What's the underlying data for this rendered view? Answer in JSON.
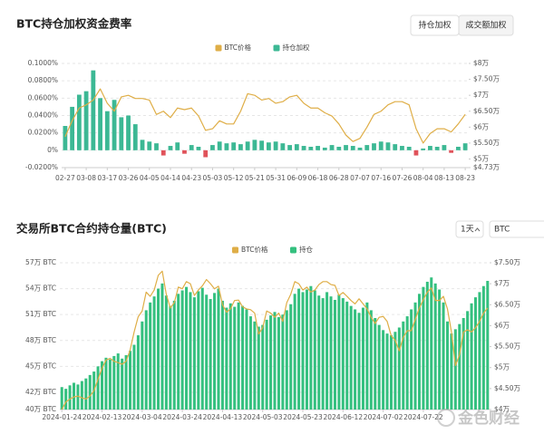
{
  "chart_data": [
    {
      "type": "combo",
      "title": "BTC持仓加权资金费率",
      "tabs": [
        "持仓加权",
        "成交额加权"
      ],
      "grid": true,
      "categories": [
        "02-27",
        null,
        null,
        "03-08",
        null,
        null,
        "03-17",
        null,
        null,
        "03-26",
        null,
        null,
        "04-05",
        null,
        null,
        "04-14",
        null,
        null,
        "04-23",
        null,
        null,
        "05-03",
        null,
        null,
        "05-12",
        null,
        null,
        "05-21",
        null,
        null,
        "05-31",
        null,
        null,
        "06-09",
        null,
        null,
        "06-18",
        null,
        null,
        "06-28",
        null,
        null,
        "07-07",
        null,
        null,
        "07-16",
        null,
        null,
        "07-26",
        null,
        null,
        "08-04",
        null,
        null,
        "08-13",
        null,
        null,
        "08-23"
      ],
      "ylim": [
        -0.02,
        0.1
      ],
      "yticks": [
        {
          "value": -0.02,
          "label": "-0.0200%"
        },
        {
          "value": 0,
          "label": "0%"
        },
        {
          "value": 0.02,
          "label": "0.0200%"
        },
        {
          "value": 0.04,
          "label": "0.0400%"
        },
        {
          "value": 0.06,
          "label": "0.0600%"
        },
        {
          "value": 0.08,
          "label": "0.0800%"
        },
        {
          "value": 0.1,
          "label": "0.1000%"
        }
      ],
      "y2lim": [
        4.73,
        8
      ],
      "y2ticks": [
        {
          "value": 4.73,
          "label": "$4.73万"
        },
        {
          "value": 5,
          "label": "$5万"
        },
        {
          "value": 5.5,
          "label": "$5.50万"
        },
        {
          "value": 6,
          "label": "$6万"
        },
        {
          "value": 6.5,
          "label": "$6.50万"
        },
        {
          "value": 7,
          "label": "$7万"
        },
        {
          "value": 7.5,
          "label": "$7.50万"
        },
        {
          "value": 8,
          "label": "$8万"
        }
      ],
      "series": [
        {
          "name": "BTC价格",
          "type": "line",
          "axis": "y2",
          "color": "#dfae47",
          "values": [
            5.7,
            6.2,
            6.6,
            6.7,
            6.85,
            7.2,
            6.75,
            6.5,
            6.95,
            7.0,
            6.9,
            6.9,
            6.85,
            6.4,
            6.5,
            6.3,
            6.6,
            6.55,
            6.6,
            6.35,
            5.9,
            5.95,
            6.2,
            6.1,
            6.1,
            6.5,
            7.05,
            7.0,
            6.85,
            6.9,
            6.75,
            6.8,
            6.95,
            7.0,
            6.75,
            6.6,
            6.6,
            6.45,
            6.35,
            6.1,
            5.75,
            5.55,
            5.65,
            6.0,
            6.4,
            6.5,
            6.7,
            6.8,
            6.8,
            6.7,
            5.95,
            5.5,
            5.8,
            5.95,
            5.95,
            5.85,
            6.1,
            6.4
          ]
        },
        {
          "name": "持仓加权",
          "type": "bar",
          "color": "#3cb894",
          "negative_color": "#e0525a",
          "values": [
            0.028,
            0.05,
            0.064,
            0.068,
            0.092,
            0.06,
            0.045,
            0.058,
            0.038,
            0.04,
            0.03,
            0.012,
            0.01,
            0.008,
            -0.006,
            0.005,
            0.009,
            -0.004,
            0.006,
            0.004,
            -0.008,
            0.006,
            0.01,
            0.008,
            0.009,
            0.007,
            0.01,
            0.012,
            0.011,
            0.009,
            0.01,
            0.008,
            0.006,
            0.007,
            0.005,
            0.004,
            0.005,
            0.003,
            0.006,
            0.004,
            0.006,
            0.005,
            0.003,
            0.006,
            0.008,
            0.01,
            0.009,
            0.007,
            0.005,
            0.004,
            -0.006,
            0.002,
            0.005,
            0.004,
            0.006,
            -0.003,
            0.004,
            0.008
          ]
        }
      ]
    },
    {
      "type": "combo",
      "title": "交易所BTC合约持仓量(BTC)",
      "controls": [
        "1天",
        "BTC"
      ],
      "grid": true,
      "categories": [
        "2024-01-24",
        null,
        null,
        null,
        null,
        null,
        null,
        null,
        null,
        null,
        "2024-02-13",
        null,
        null,
        null,
        null,
        null,
        null,
        null,
        null,
        null,
        "2024-03-04",
        null,
        null,
        null,
        null,
        null,
        null,
        null,
        null,
        null,
        "2024-03-24",
        null,
        null,
        null,
        null,
        null,
        null,
        null,
        null,
        null,
        "2024-04-13",
        null,
        null,
        null,
        null,
        null,
        null,
        null,
        null,
        null,
        "2024-05-03",
        null,
        null,
        null,
        null,
        null,
        null,
        null,
        null,
        null,
        "2024-05-23",
        null,
        null,
        null,
        null,
        null,
        null,
        null,
        null,
        null,
        "2024-06-12",
        null,
        null,
        null,
        null,
        null,
        null,
        null,
        null,
        null,
        "2024-07-02",
        null,
        null,
        null,
        null,
        null,
        null,
        null,
        null,
        null,
        "2024-07-22",
        null,
        null,
        null,
        null,
        null,
        null,
        null,
        null,
        null,
        null,
        null,
        null,
        null,
        null,
        null,
        null
      ],
      "ylim": [
        40,
        57
      ],
      "yticks": [
        {
          "value": 40,
          "label": "40万 BTC"
        },
        {
          "value": 42,
          "label": "42万 BTC"
        },
        {
          "value": 45,
          "label": "45万 BTC"
        },
        {
          "value": 48,
          "label": "48万 BTC"
        },
        {
          "value": 51,
          "label": "51万 BTC"
        },
        {
          "value": 54,
          "label": "54万 BTC"
        },
        {
          "value": 57,
          "label": "57万 BTC"
        }
      ],
      "y2lim": [
        4,
        7.5
      ],
      "y2ticks": [
        {
          "value": 4,
          "label": "$4万"
        },
        {
          "value": 4.5,
          "label": "$4.50万"
        },
        {
          "value": 5,
          "label": "$5万"
        },
        {
          "value": 5.5,
          "label": "$5.50万"
        },
        {
          "value": 6,
          "label": "$6万"
        },
        {
          "value": 6.5,
          "label": "$6.50万"
        },
        {
          "value": 7,
          "label": "$7万"
        },
        {
          "value": 7.5,
          "label": "$7.50万"
        }
      ],
      "series": [
        {
          "name": "BTC价格",
          "type": "line",
          "axis": "y2",
          "color": "#dfae47",
          "values": [
            4.0,
            4.18,
            4.25,
            4.3,
            4.32,
            4.28,
            4.25,
            4.32,
            4.45,
            4.72,
            4.98,
            5.18,
            5.22,
            5.15,
            5.12,
            5.08,
            5.15,
            5.42,
            5.85,
            6.21,
            6.35,
            6.8,
            6.7,
            6.85,
            7.2,
            7.3,
            6.75,
            6.42,
            6.55,
            6.92,
            6.88,
            7.05,
            7.0,
            6.72,
            6.85,
            6.95,
            7.1,
            7.0,
            6.88,
            6.94,
            6.5,
            6.32,
            6.4,
            6.6,
            6.61,
            6.45,
            6.4,
            6.38,
            6.3,
            5.8,
            5.95,
            6.35,
            6.3,
            6.2,
            6.3,
            6.1,
            6.55,
            6.75,
            7.05,
            7.0,
            6.85,
            6.92,
            6.8,
            6.85,
            6.98,
            7.05,
            7.05,
            6.98,
            6.96,
            6.72,
            6.79,
            6.7,
            6.6,
            6.52,
            6.64,
            6.52,
            6.4,
            6.2,
            6.05,
            6.2,
            6.22,
            6.1,
            5.76,
            5.65,
            5.4,
            5.72,
            5.88,
            5.88,
            6.15,
            6.42,
            6.62,
            6.8,
            6.9,
            6.6,
            6.6,
            6.7,
            6.4,
            5.85,
            5.05,
            5.3,
            5.85,
            5.9,
            5.85,
            5.95,
            6.1,
            6.3,
            6.42
          ]
        },
        {
          "name": "持仓",
          "type": "bar",
          "color": "#34c07f",
          "values": [
            42.6,
            42.4,
            42.8,
            43.1,
            42.9,
            43.3,
            43.6,
            44.0,
            44.4,
            45.0,
            45.6,
            46.0,
            45.8,
            46.2,
            46.5,
            45.9,
            46.3,
            46.8,
            47.5,
            48.6,
            50.2,
            51.5,
            52.4,
            53.1,
            54.0,
            54.6,
            53.2,
            52.0,
            52.6,
            53.4,
            53.8,
            54.2,
            53.6,
            53.0,
            53.7,
            54.1,
            53.3,
            52.8,
            53.5,
            54.0,
            52.6,
            51.8,
            52.3,
            51.9,
            52.4,
            52.0,
            51.6,
            50.8,
            50.2,
            49.6,
            49.8,
            50.4,
            50.9,
            51.3,
            50.7,
            51.0,
            51.5,
            52.2,
            53.4,
            54.0,
            53.6,
            53.9,
            54.3,
            53.8,
            53.2,
            52.9,
            53.6,
            53.1,
            52.7,
            53.3,
            52.9,
            52.5,
            52.0,
            51.6,
            51.2,
            51.8,
            52.4,
            51.5,
            50.6,
            49.8,
            49.2,
            48.8,
            48.6,
            49.0,
            49.5,
            50.2,
            50.8,
            51.6,
            52.4,
            53.4,
            54.2,
            54.8,
            55.3,
            54.6,
            53.9,
            52.4,
            50.2,
            48.8,
            49.3,
            49.9,
            50.6,
            51.4,
            52.3,
            53.0,
            53.6,
            54.3,
            54.9
          ]
        }
      ]
    }
  ],
  "watermark": "金色财经"
}
